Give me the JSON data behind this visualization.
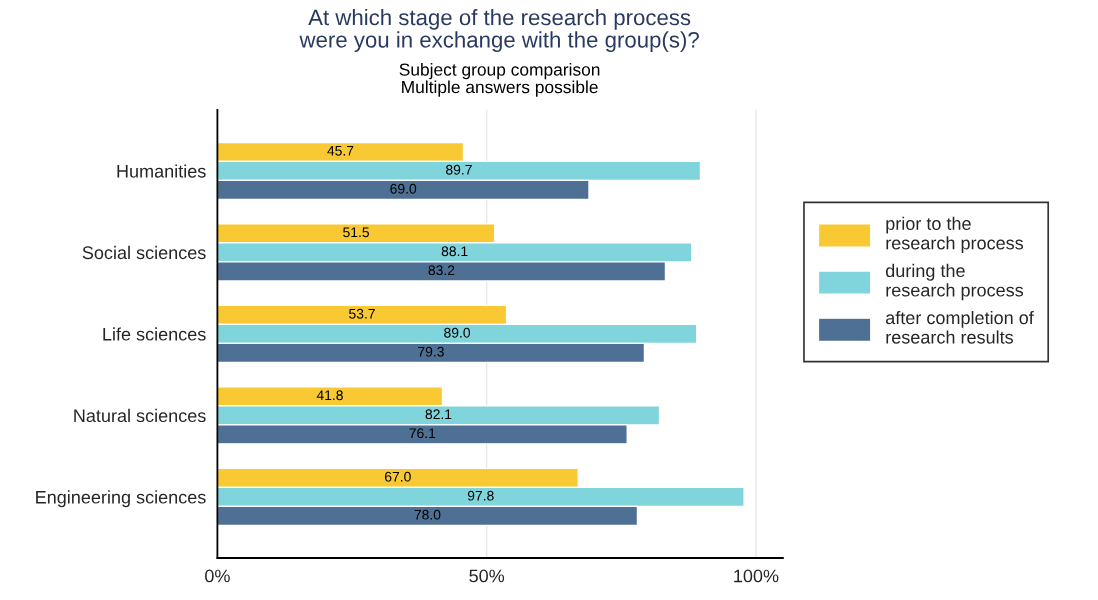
{
  "chart_data": {
    "type": "bar",
    "orientation": "horizontal",
    "title": "At which stage of the research process\nwere you in exchange with the group(s)?",
    "subtitle": "Subject group comparison\nMultiple answers possible",
    "categories": [
      "Humanities",
      "Social sciences",
      "Life sciences",
      "Natural sciences",
      "Engineering sciences"
    ],
    "series": [
      {
        "name": "prior to the\nresearch process",
        "color": "#f9c933",
        "values": [
          45.7,
          51.5,
          53.7,
          41.8,
          67.0
        ],
        "value_labels": [
          "45.7",
          "51.5",
          "53.7",
          "41.8",
          "67.0"
        ]
      },
      {
        "name": "during the\nresearch process",
        "color": "#80d4dc",
        "values": [
          89.7,
          88.1,
          89.0,
          82.1,
          97.8
        ],
        "value_labels": [
          "89.7",
          "88.1",
          "89.0",
          "82.1",
          "97.8"
        ]
      },
      {
        "name": "after completion of\nresearch results",
        "color": "#4e7094",
        "values": [
          69.0,
          83.2,
          79.3,
          76.1,
          78.0
        ],
        "value_labels": [
          "69.0",
          "83.2",
          "79.3",
          "76.1",
          "78.0"
        ]
      }
    ],
    "xlim": [
      0,
      105
    ],
    "xticks": [
      {
        "value": 0,
        "label": "0%"
      },
      {
        "value": 50,
        "label": "50%"
      },
      {
        "value": 100,
        "label": "100%"
      }
    ],
    "grid": "x",
    "legend": "right"
  }
}
